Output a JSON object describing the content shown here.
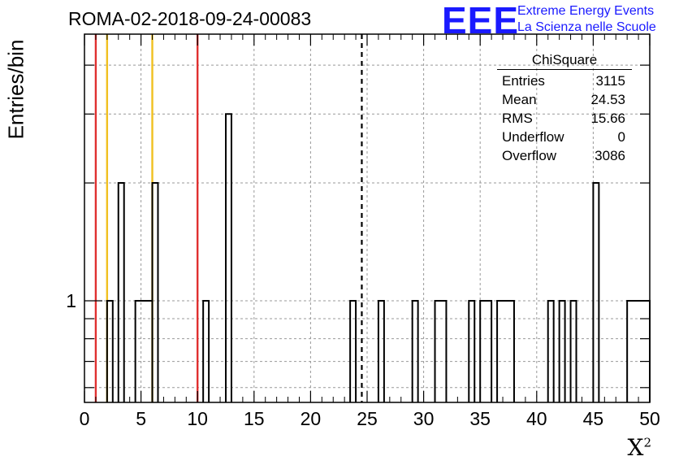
{
  "header": {
    "title": "ROMA-02-2018-09-24-00083",
    "logo": "EEE",
    "logo_line1": "Extreme Energy Events",
    "logo_line2": "La Scienza nelle Scuole"
  },
  "stats": {
    "name": "ChiSquare",
    "rows": [
      {
        "label": "Entries",
        "value": "3115"
      },
      {
        "label": "Mean",
        "value": "24.53"
      },
      {
        "label": "RMS",
        "value": "15.66"
      },
      {
        "label": "Underflow",
        "value": "0"
      },
      {
        "label": "Overflow",
        "value": "3086"
      }
    ]
  },
  "chart_data": {
    "type": "bar",
    "xlabel": "X",
    "xlabel_sup": "2",
    "ylabel": "Entries/bin",
    "xlim": [
      0,
      50
    ],
    "ylim": [
      0.55,
      4.8
    ],
    "yscale": "log",
    "grid": true,
    "xticks": [
      "0",
      "5",
      "10",
      "15",
      "20",
      "25",
      "30",
      "35",
      "40",
      "45",
      "50"
    ],
    "yticks": [
      "1"
    ],
    "bins": [
      {
        "x0": 2.0,
        "x1": 2.5,
        "count": 1
      },
      {
        "x0": 3.0,
        "x1": 3.5,
        "count": 2
      },
      {
        "x0": 4.5,
        "x1": 6.0,
        "count": 1
      },
      {
        "x0": 6.0,
        "x1": 6.5,
        "count": 2
      },
      {
        "x0": 10.5,
        "x1": 11.0,
        "count": 1
      },
      {
        "x0": 12.5,
        "x1": 13.0,
        "count": 3
      },
      {
        "x0": 23.5,
        "x1": 24.0,
        "count": 1
      },
      {
        "x0": 26.0,
        "x1": 26.5,
        "count": 1
      },
      {
        "x0": 29.0,
        "x1": 29.5,
        "count": 1
      },
      {
        "x0": 31.0,
        "x1": 32.0,
        "count": 1
      },
      {
        "x0": 34.0,
        "x1": 34.5,
        "count": 1
      },
      {
        "x0": 35.0,
        "x1": 36.0,
        "count": 1
      },
      {
        "x0": 36.5,
        "x1": 38.0,
        "count": 1
      },
      {
        "x0": 41.0,
        "x1": 41.5,
        "count": 1
      },
      {
        "x0": 42.0,
        "x1": 42.5,
        "count": 1
      },
      {
        "x0": 43.0,
        "x1": 43.5,
        "count": 1
      },
      {
        "x0": 45.0,
        "x1": 45.5,
        "count": 2
      },
      {
        "x0": 48.0,
        "x1": 50.0,
        "count": 1
      }
    ],
    "vlines": [
      {
        "x": 1.0,
        "color": "#e03030",
        "style": "solid"
      },
      {
        "x": 2.0,
        "color": "#f0c020",
        "style": "solid"
      },
      {
        "x": 6.0,
        "color": "#f0c020",
        "style": "solid"
      },
      {
        "x": 10.0,
        "color": "#e03030",
        "style": "solid"
      },
      {
        "x": 24.53,
        "color": "#000000",
        "style": "dashed"
      }
    ]
  }
}
